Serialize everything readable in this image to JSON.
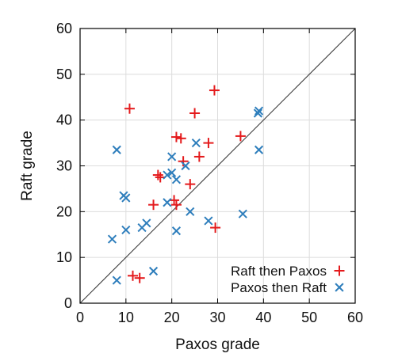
{
  "chart_data": {
    "type": "scatter",
    "title": "",
    "xlabel": "Paxos grade",
    "ylabel": "Raft grade",
    "xlim": [
      0,
      60
    ],
    "ylim": [
      0,
      60
    ],
    "xticks": [
      0,
      10,
      20,
      30,
      40,
      50,
      60
    ],
    "yticks": [
      0,
      10,
      20,
      30,
      40,
      50,
      60
    ],
    "grid": true,
    "legend_position": "bottom-right",
    "reference_line": "y = x",
    "series": [
      {
        "name": "Raft then Paxos",
        "marker": "plus",
        "color": "#e41a1c",
        "points": [
          [
            10.8,
            42.5
          ],
          [
            29.3,
            46.5
          ],
          [
            25,
            41.5
          ],
          [
            21,
            36.3
          ],
          [
            22,
            36
          ],
          [
            28,
            35
          ],
          [
            35,
            36.5
          ],
          [
            26,
            32
          ],
          [
            22.5,
            31
          ],
          [
            17,
            28
          ],
          [
            17.5,
            27.5
          ],
          [
            20.5,
            22.5
          ],
          [
            21,
            21.5
          ],
          [
            16,
            21.5
          ],
          [
            24,
            26
          ],
          [
            29.5,
            16.5
          ],
          [
            11.5,
            6
          ],
          [
            13,
            5.5
          ]
        ]
      },
      {
        "name": "Paxos then Raft",
        "marker": "x",
        "color": "#2e7ebc",
        "points": [
          [
            8,
            33.5
          ],
          [
            20,
            32
          ],
          [
            25.3,
            35
          ],
          [
            23,
            30
          ],
          [
            19,
            28
          ],
          [
            20,
            28.5
          ],
          [
            21,
            27
          ],
          [
            9.5,
            23.5
          ],
          [
            10,
            23
          ],
          [
            19,
            22
          ],
          [
            24,
            20
          ],
          [
            28,
            18
          ],
          [
            35.5,
            19.5
          ],
          [
            39,
            33.5
          ],
          [
            39,
            42
          ],
          [
            38.8,
            41.5
          ],
          [
            14.5,
            17.5
          ],
          [
            13.5,
            16.5
          ],
          [
            10,
            16
          ],
          [
            21,
            15.8
          ],
          [
            7,
            14
          ],
          [
            16,
            7
          ],
          [
            8,
            5
          ]
        ]
      }
    ]
  }
}
